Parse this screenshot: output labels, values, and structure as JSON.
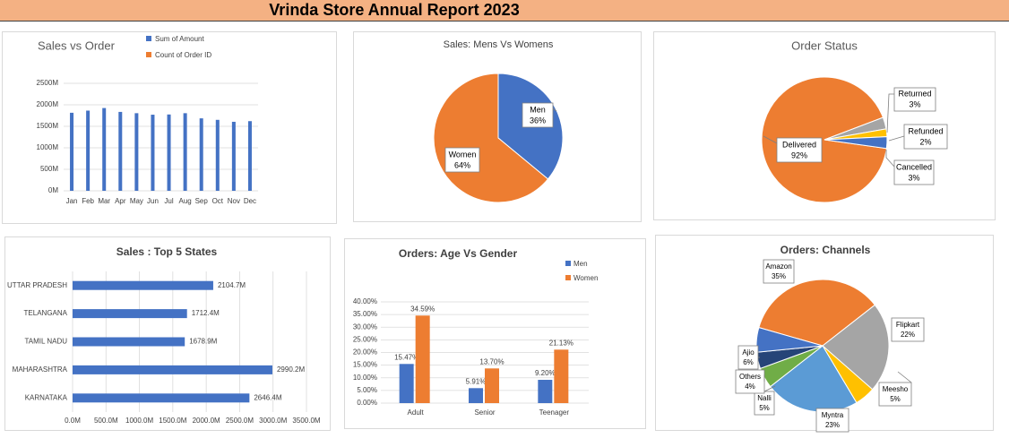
{
  "report": {
    "title": "Vrinda Store Annual Report 2023"
  },
  "chart_data": [
    {
      "id": "sales-vs-order",
      "type": "bar",
      "title": "Sales vs Order",
      "legend": [
        "Sum of Amount",
        "Count of Order ID"
      ],
      "legend_position": "top",
      "categories": [
        "Jan",
        "Feb",
        "Mar",
        "Apr",
        "May",
        "Jun",
        "Jul",
        "Aug",
        "Sep",
        "Oct",
        "Nov",
        "Dec"
      ],
      "series": [
        {
          "name": "Sum of Amount",
          "values": [
            1815,
            1865,
            1925,
            1835,
            1805,
            1770,
            1775,
            1805,
            1685,
            1650,
            1605,
            1620
          ]
        }
      ],
      "yticks": [
        "0M",
        "500M",
        "1000M",
        "1500M",
        "2000M",
        "2500M"
      ],
      "ylim": [
        0,
        2500
      ],
      "grid": true,
      "colors": {
        "amount": "#4472c4",
        "orders": "#ed7d31"
      }
    },
    {
      "id": "sales-men-women",
      "type": "pie",
      "title": "Sales: Mens Vs Womens",
      "slices": [
        {
          "label": "Men",
          "pct_label": "36%",
          "value": 36,
          "color": "#4472c4"
        },
        {
          "label": "Women",
          "pct_label": "64%",
          "value": 64,
          "color": "#ed7d31"
        }
      ]
    },
    {
      "id": "order-status",
      "type": "pie",
      "title": "Order Status",
      "slices": [
        {
          "label": "Delivered",
          "pct_label": "92%",
          "value": 92,
          "color": "#ed7d31"
        },
        {
          "label": "Returned",
          "pct_label": "3%",
          "value": 3,
          "color": "#a5a5a5"
        },
        {
          "label": "Refunded",
          "pct_label": "2%",
          "value": 2,
          "color": "#ffc000"
        },
        {
          "label": "Cancelled",
          "pct_label": "3%",
          "value": 3,
          "color": "#4472c4"
        }
      ]
    },
    {
      "id": "sales-top5-states",
      "type": "bar",
      "orientation": "horizontal",
      "title": "Sales : Top 5 States",
      "categories": [
        "UTTAR PRADESH",
        "TELANGANA",
        "TAMIL NADU",
        "MAHARASHTRA",
        "KARNATAKA"
      ],
      "values": [
        2104.7,
        1712.4,
        1678.9,
        2990.2,
        2646.4
      ],
      "value_labels": [
        "2104.7M",
        "1712.4M",
        "1678.9M",
        "2990.2M",
        "2646.4M"
      ],
      "xticks": [
        "0.0M",
        "500.0M",
        "1000.0M",
        "1500.0M",
        "2000.0M",
        "2500.0M",
        "3000.0M",
        "3500.0M"
      ],
      "xlim": [
        0,
        3500
      ],
      "grid": true,
      "color": "#4472c4"
    },
    {
      "id": "orders-age-gender",
      "type": "bar",
      "title": "Orders: Age Vs Gender",
      "categories": [
        "Adult",
        "Senior",
        "Teenager"
      ],
      "series": [
        {
          "name": "Men",
          "values": [
            15.47,
            5.91,
            9.2
          ],
          "labels": [
            "15.47%",
            "5.91%",
            "9.20%"
          ],
          "color": "#4472c4"
        },
        {
          "name": "Women",
          "values": [
            34.59,
            13.7,
            21.13
          ],
          "labels": [
            "34.59%",
            "13.70%",
            "21.13%"
          ],
          "color": "#ed7d31"
        }
      ],
      "yticks": [
        "0.00%",
        "5.00%",
        "10.00%",
        "15.00%",
        "20.00%",
        "25.00%",
        "30.00%",
        "35.00%",
        "40.00%"
      ],
      "ylim": [
        0,
        40
      ],
      "grid": true,
      "legend_position": "top-right"
    },
    {
      "id": "orders-channels",
      "type": "pie",
      "title": "Orders: Channels",
      "slices": [
        {
          "label": "Amazon",
          "pct_label": "35%",
          "value": 35,
          "color": "#ed7d31"
        },
        {
          "label": "Flipkart",
          "pct_label": "22%",
          "value": 22,
          "color": "#a5a5a5"
        },
        {
          "label": "Meesho",
          "pct_label": "5%",
          "value": 5,
          "color": "#ffc000"
        },
        {
          "label": "Myntra",
          "pct_label": "23%",
          "value": 23,
          "color": "#5b9bd5"
        },
        {
          "label": "Nalli",
          "pct_label": "5%",
          "value": 5,
          "color": "#70ad47"
        },
        {
          "label": "Others",
          "pct_label": "4%",
          "value": 4,
          "color": "#264478"
        },
        {
          "label": "Ajio",
          "pct_label": "6%",
          "value": 6,
          "color": "#4472c4"
        }
      ]
    }
  ]
}
